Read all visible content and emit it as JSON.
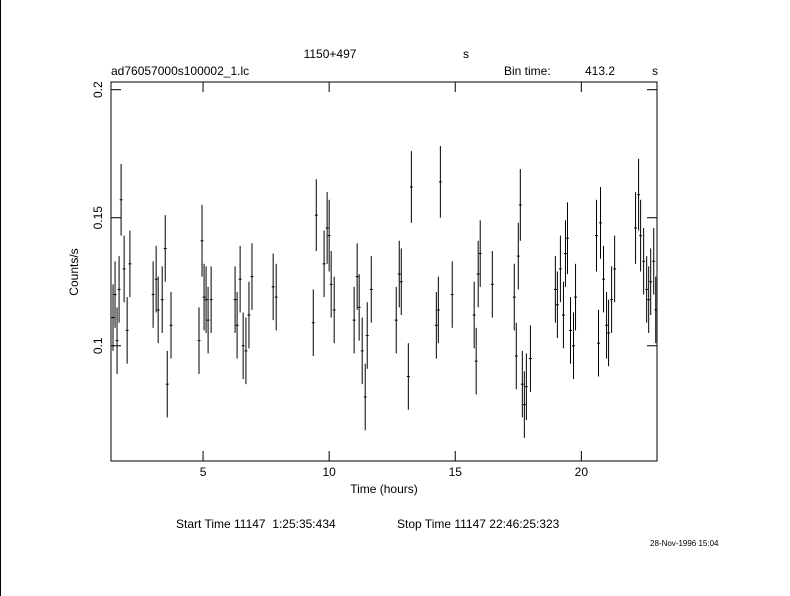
{
  "chart_data": {
    "type": "errorbar",
    "source": "1150+497",
    "source_unit": "s",
    "file": "ad76057000s100002_1.lc",
    "bin_time_label": "Bin time:",
    "bin_time": "413.2",
    "bin_time_unit": "s",
    "xlabel": "Time (hours)",
    "ylabel": "Counts/s",
    "start_time": "Start Time 11147  1:25:35:434",
    "stop_time": "Stop Time 11147 22:46:25:323",
    "date": "28-Nov-1996 15:04",
    "xlim": [
      1.35,
      23.0
    ],
    "ylim": [
      0.055,
      0.203
    ],
    "xticks": [
      5,
      10,
      15,
      20
    ],
    "yticks": [
      0.1,
      0.15,
      0.2
    ],
    "color": "#000000",
    "xerr": 0.057,
    "x": [
      1.43,
      1.51,
      1.59,
      1.67,
      1.75,
      1.87,
      1.99,
      2.1,
      3.02,
      3.14,
      3.22,
      3.38,
      3.5,
      3.58,
      3.73,
      4.84,
      4.96,
      5.04,
      5.12,
      5.2,
      5.32,
      6.27,
      6.35,
      6.47,
      6.59,
      6.7,
      6.82,
      6.94,
      7.78,
      7.9,
      9.37,
      9.49,
      9.8,
      9.92,
      10.0,
      10.08,
      10.2,
      10.99,
      11.11,
      11.19,
      11.31,
      11.43,
      11.51,
      11.67,
      12.66,
      12.78,
      12.86,
      13.14,
      13.26,
      14.25,
      14.33,
      14.41,
      14.88,
      15.75,
      15.83,
      15.91,
      15.99,
      16.47,
      17.34,
      17.42,
      17.5,
      17.58,
      17.66,
      17.74,
      17.82,
      17.98,
      18.97,
      19.05,
      19.17,
      19.29,
      19.37,
      19.45,
      19.57,
      19.69,
      19.77,
      20.6,
      20.68,
      20.76,
      20.88,
      21.0,
      21.08,
      21.2,
      21.32,
      22.15,
      22.27,
      22.35,
      22.47,
      22.59,
      22.67,
      22.75,
      22.87,
      22.95
    ],
    "values": [
      0.111,
      0.12,
      0.102,
      0.122,
      0.157,
      0.13,
      0.106,
      0.132,
      0.12,
      0.126,
      0.114,
      0.118,
      0.138,
      0.085,
      0.108,
      0.102,
      0.141,
      0.119,
      0.118,
      0.11,
      0.118,
      0.118,
      0.108,
      0.126,
      0.1,
      0.098,
      0.112,
      0.127,
      0.123,
      0.119,
      0.109,
      0.151,
      0.132,
      0.146,
      0.143,
      0.124,
      0.114,
      0.11,
      0.127,
      0.115,
      0.098,
      0.08,
      0.104,
      0.122,
      0.11,
      0.128,
      0.125,
      0.088,
      0.162,
      0.108,
      0.114,
      0.164,
      0.12,
      0.112,
      0.094,
      0.128,
      0.136,
      0.124,
      0.119,
      0.096,
      0.135,
      0.155,
      0.085,
      0.077,
      0.084,
      0.095,
      0.122,
      0.116,
      0.13,
      0.112,
      0.136,
      0.142,
      0.106,
      0.1,
      0.119,
      0.143,
      0.101,
      0.148,
      0.126,
      0.108,
      0.105,
      0.118,
      0.13,
      0.146,
      0.159,
      0.143,
      0.133,
      0.122,
      0.118,
      0.125,
      0.133,
      0.114
    ],
    "errors": [
      0.013,
      0.013,
      0.013,
      0.013,
      0.014,
      0.013,
      0.013,
      0.013,
      0.013,
      0.013,
      0.013,
      0.013,
      0.013,
      0.013,
      0.013,
      0.013,
      0.014,
      0.013,
      0.013,
      0.013,
      0.013,
      0.013,
      0.013,
      0.013,
      0.013,
      0.013,
      0.013,
      0.013,
      0.013,
      0.013,
      0.013,
      0.014,
      0.013,
      0.014,
      0.014,
      0.013,
      0.013,
      0.013,
      0.013,
      0.013,
      0.013,
      0.013,
      0.013,
      0.013,
      0.013,
      0.013,
      0.013,
      0.013,
      0.014,
      0.013,
      0.013,
      0.014,
      0.013,
      0.013,
      0.013,
      0.013,
      0.013,
      0.013,
      0.013,
      0.013,
      0.013,
      0.014,
      0.013,
      0.013,
      0.013,
      0.013,
      0.013,
      0.013,
      0.013,
      0.013,
      0.013,
      0.014,
      0.013,
      0.013,
      0.013,
      0.014,
      0.013,
      0.014,
      0.013,
      0.013,
      0.013,
      0.013,
      0.013,
      0.014,
      0.014,
      0.014,
      0.013,
      0.013,
      0.013,
      0.013,
      0.013,
      0.013
    ]
  }
}
